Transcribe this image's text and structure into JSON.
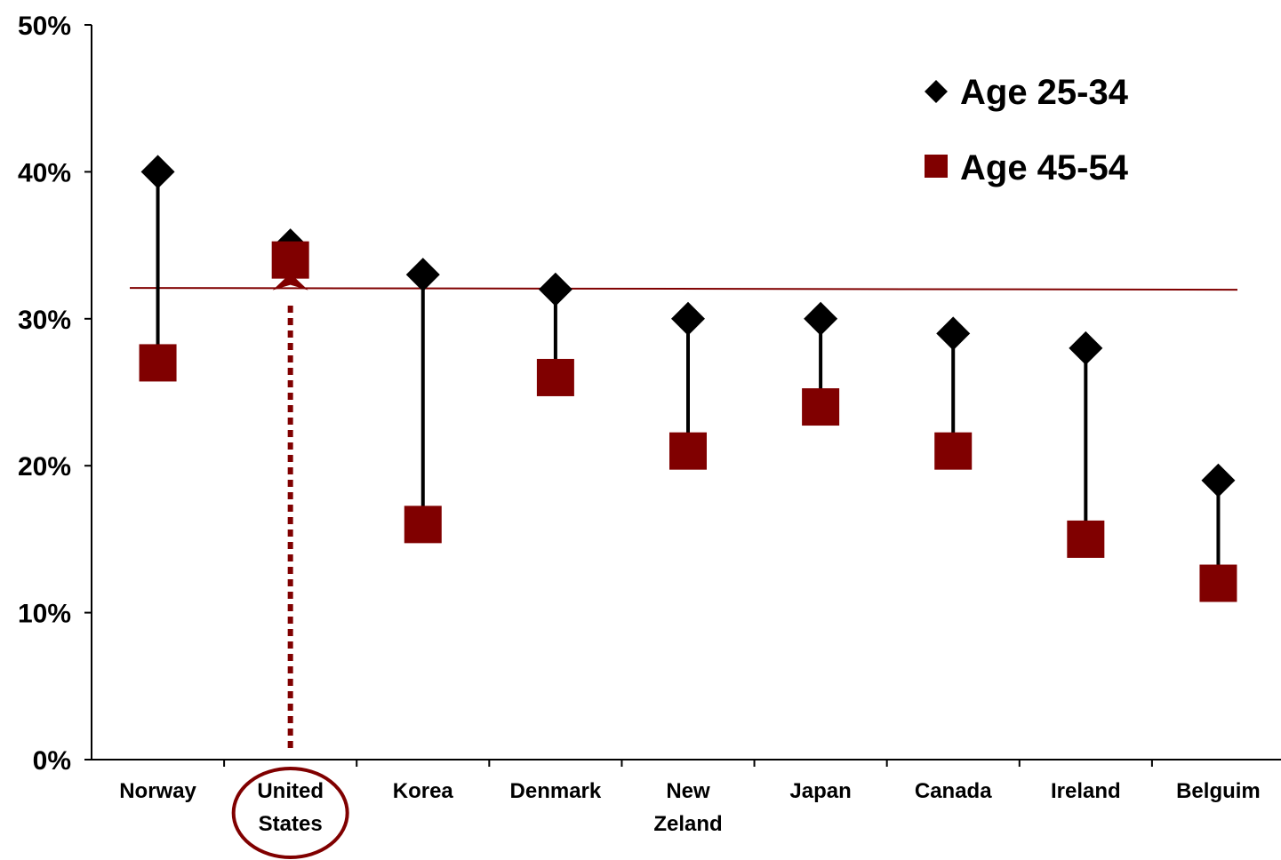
{
  "chart_data": {
    "type": "scatter",
    "categories": [
      [
        "Norway"
      ],
      [
        "United",
        "States"
      ],
      [
        "Korea"
      ],
      [
        "Denmark"
      ],
      [
        "New",
        "Zeland"
      ],
      [
        "Japan"
      ],
      [
        "Canada"
      ],
      [
        "Ireland"
      ],
      [
        "Belguim"
      ]
    ],
    "series": [
      {
        "name": "Age 25-34",
        "marker": "diamond",
        "color": "#000000",
        "values": [
          40,
          35,
          33,
          32,
          30,
          30,
          29,
          28,
          19
        ]
      },
      {
        "name": "Age 45-54",
        "marker": "square",
        "color": "#800000",
        "values": [
          27,
          34,
          16,
          26,
          21,
          24,
          21,
          15,
          12
        ]
      }
    ],
    "reference_line": {
      "value": 32.1,
      "color": "#800000"
    },
    "highlight": {
      "category_index": 1,
      "style": "circled label with dotted arrow",
      "color": "#800000"
    },
    "ylim": [
      0,
      50
    ],
    "yticks": [
      "0%",
      "10%",
      "20%",
      "30%",
      "40%",
      "50%"
    ],
    "legend_position": "top-right",
    "grid": false
  }
}
